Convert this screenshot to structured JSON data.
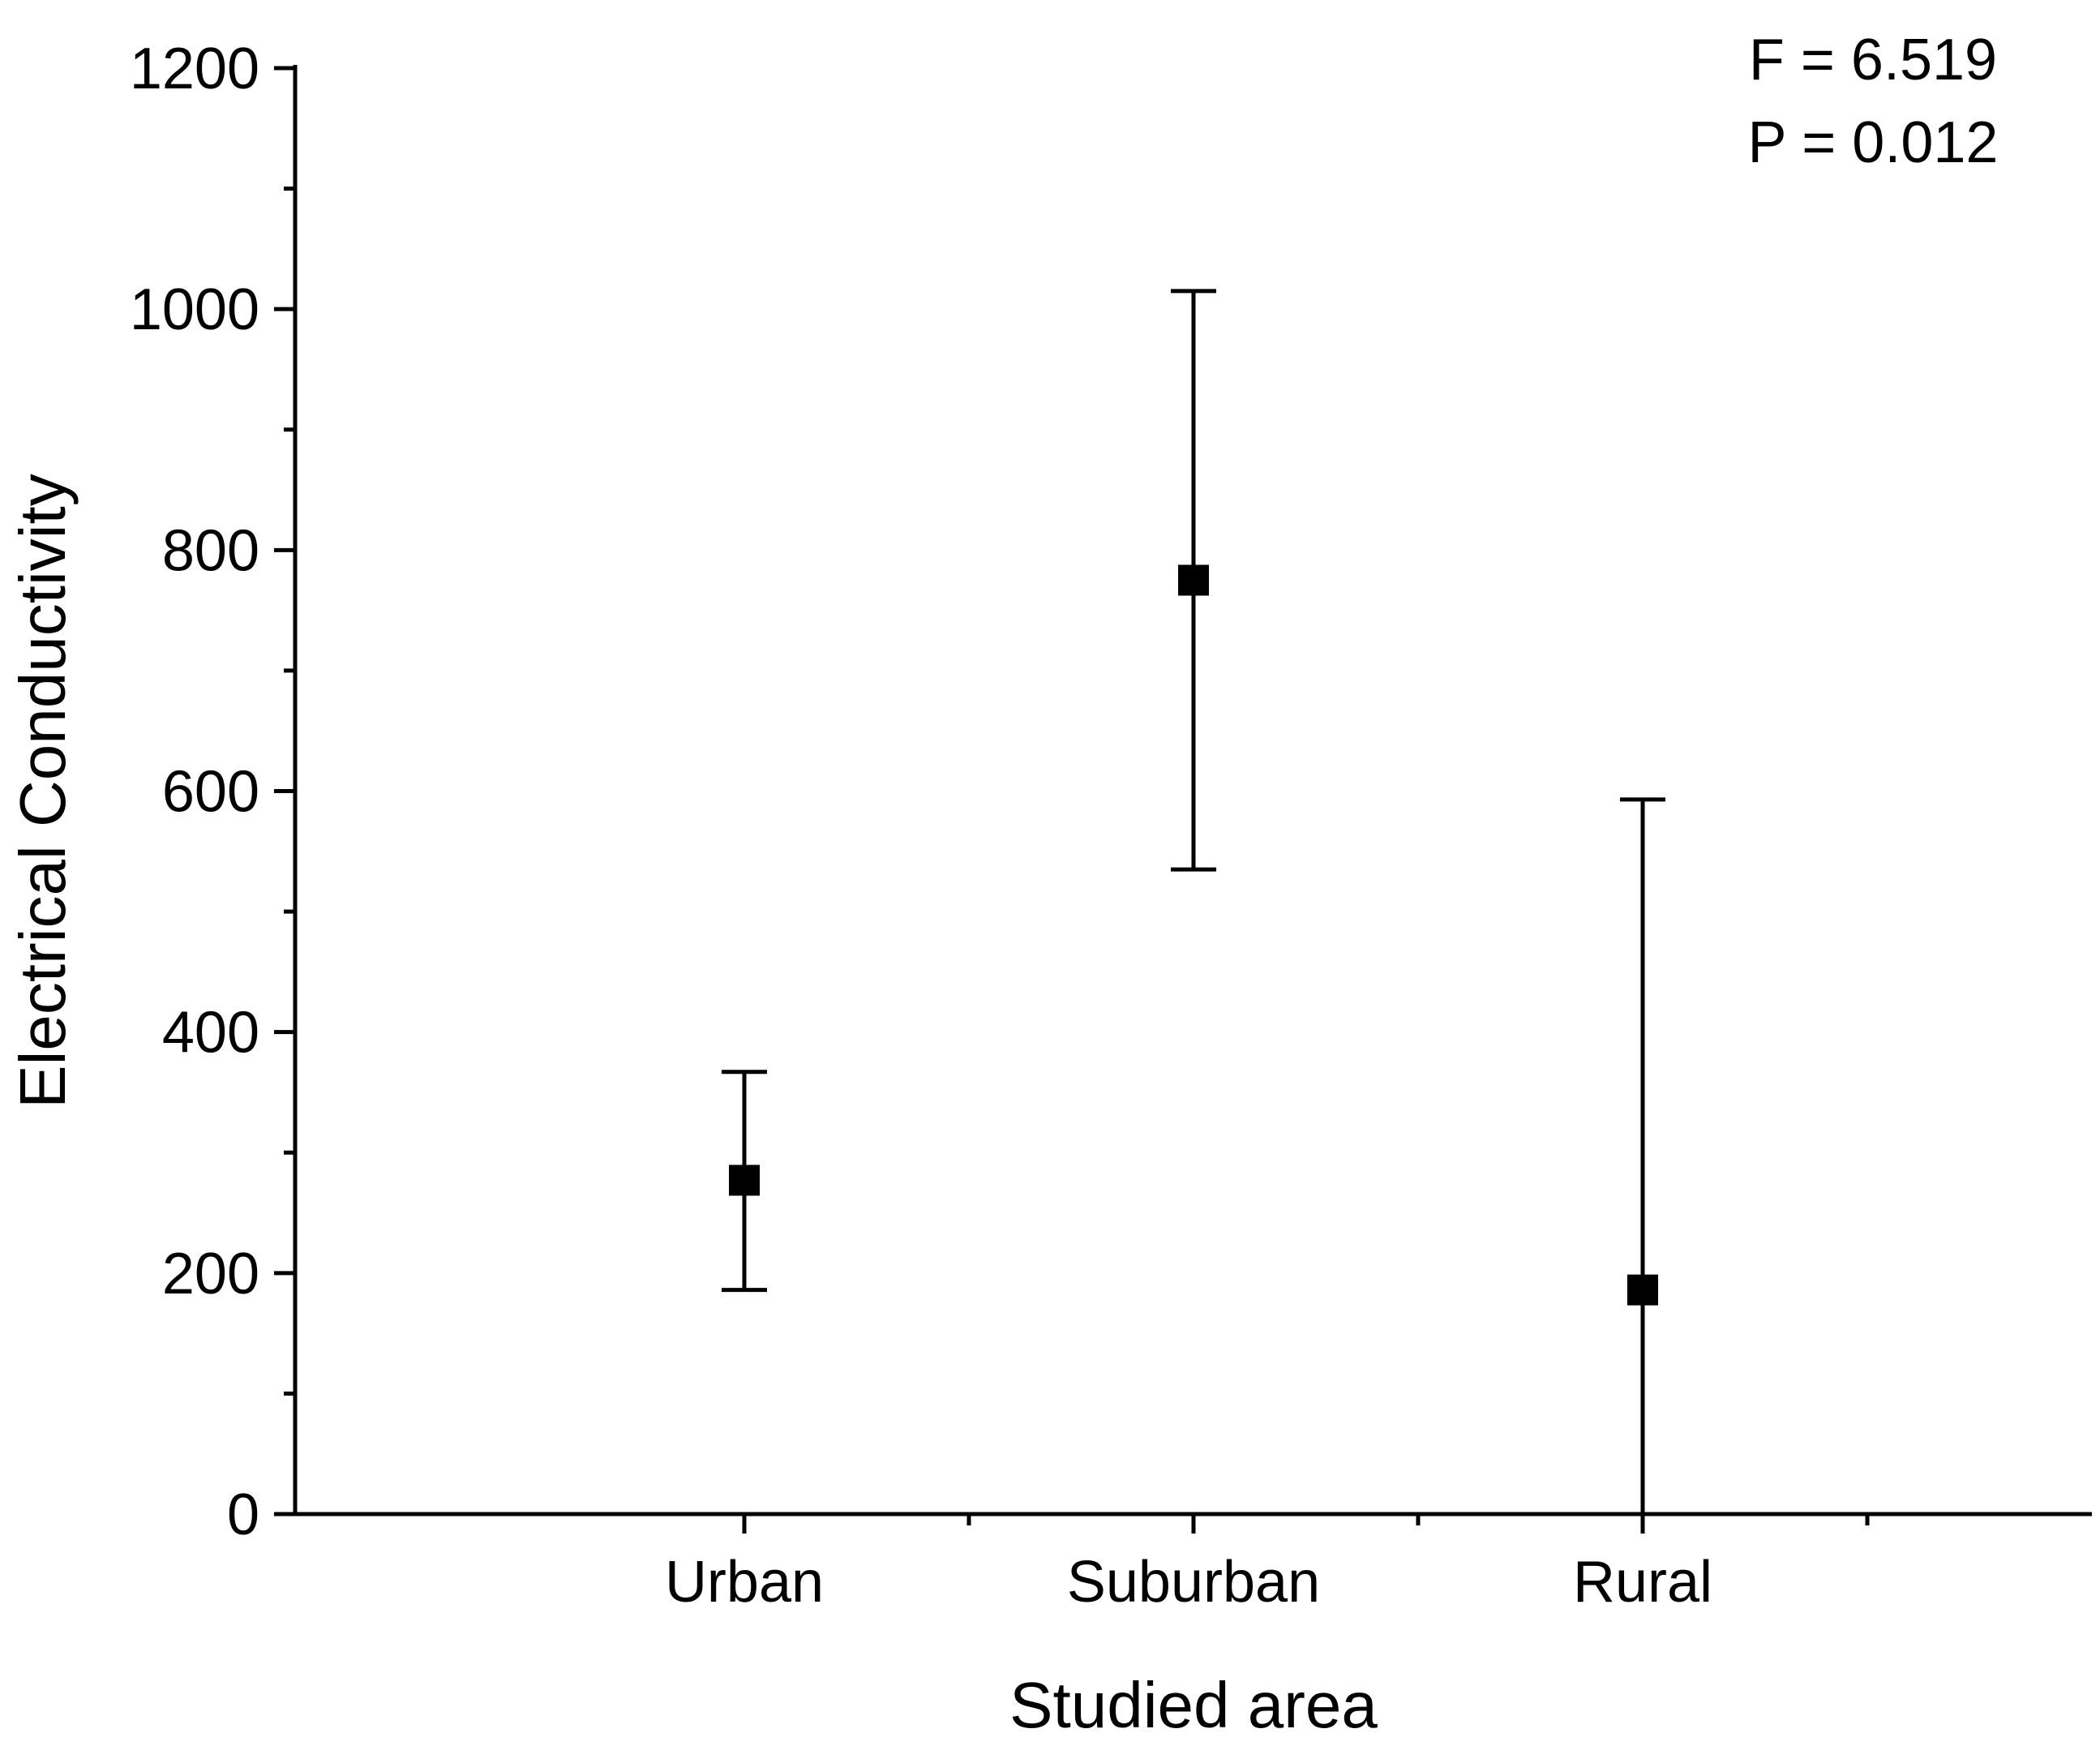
{
  "chart_data": {
    "type": "scatter",
    "xlabel": "Studied area",
    "ylabel": "Electrical Conductivity",
    "categories": [
      "Urban",
      "Suburban",
      "Rural"
    ],
    "series": [
      {
        "values": [
          277,
          775,
          186
        ],
        "error_low": [
          186,
          535,
          0
        ],
        "error_high": [
          367,
          1015,
          593
        ]
      }
    ],
    "ylim": [
      0,
      1200
    ],
    "yticks": [
      0,
      200,
      400,
      600,
      800,
      1000,
      1200
    ],
    "grid": false,
    "annotations": [
      "F = 6.519",
      "P = 0.012"
    ]
  },
  "colors": {
    "marker": "#000000",
    "axis": "#000000"
  }
}
